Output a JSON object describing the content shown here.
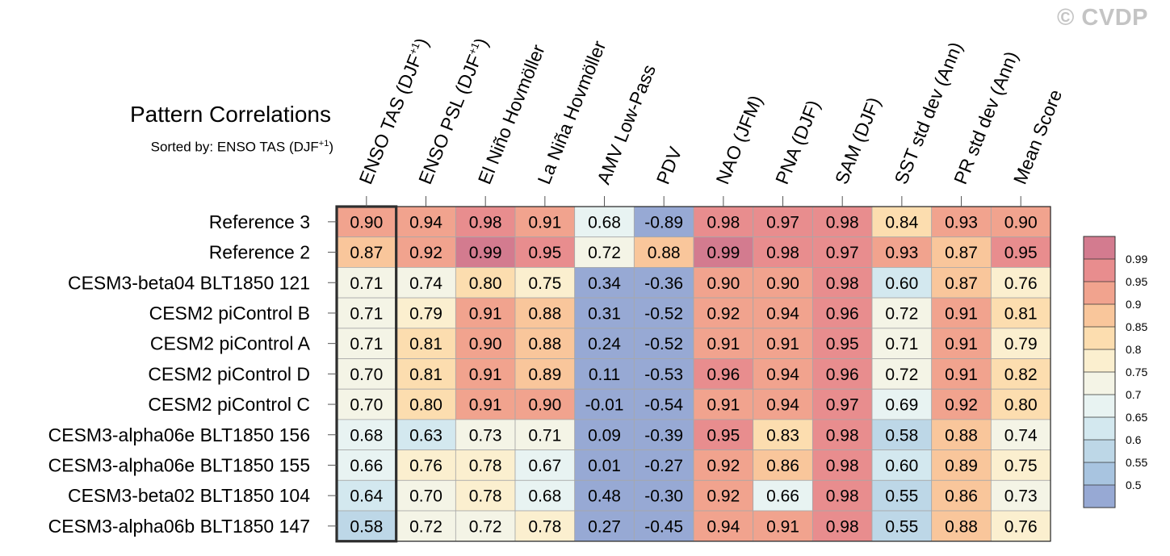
{
  "watermark": "© CVDP",
  "chart_data": {
    "type": "heatmap",
    "title": "Pattern Correlations",
    "subtitle": "Sorted by: ENSO TAS (DJF",
    "subtitle_sup": "+1",
    "subtitle_end": ")",
    "highlight_column": 0,
    "columns": [
      {
        "label": "ENSO TAS (DJF",
        "sup": "+1",
        "end": ")"
      },
      {
        "label": "ENSO PSL (DJF",
        "sup": "+1",
        "end": ")"
      },
      {
        "label": "El Niño Hovmöller",
        "sup": "",
        "end": ""
      },
      {
        "label": "La Niña Hovmöller",
        "sup": "",
        "end": ""
      },
      {
        "label": "AMV Low-Pass",
        "sup": "",
        "end": ""
      },
      {
        "label": "PDV",
        "sup": "",
        "end": ""
      },
      {
        "label": "NAO (JFM)",
        "sup": "",
        "end": ""
      },
      {
        "label": "PNA (DJF)",
        "sup": "",
        "end": ""
      },
      {
        "label": "SAM (DJF)",
        "sup": "",
        "end": ""
      },
      {
        "label": "SST std dev (Ann)",
        "sup": "",
        "end": ""
      },
      {
        "label": "PR std dev (Ann)",
        "sup": "",
        "end": ""
      },
      {
        "label": "Mean Score",
        "sup": "",
        "end": ""
      }
    ],
    "rows": [
      "Reference 3",
      "Reference 2",
      "CESM3-beta04 BLT1850 121",
      "CESM2 piControl B",
      "CESM2 piControl A",
      "CESM2 piControl D",
      "CESM2 piControl C",
      "CESM3-alpha06e BLT1850 156",
      "CESM3-alpha06e BLT1850 155",
      "CESM3-beta02 BLT1850 104",
      "CESM3-alpha06b BLT1850 147"
    ],
    "values": [
      [
        "0.90",
        "0.94",
        "0.98",
        "0.91",
        "0.68",
        "-0.89",
        "0.98",
        "0.97",
        "0.98",
        "0.84",
        "0.93",
        "0.90"
      ],
      [
        "0.87",
        "0.92",
        "0.99",
        "0.95",
        "0.72",
        "0.88",
        "0.99",
        "0.98",
        "0.97",
        "0.93",
        "0.87",
        "0.95"
      ],
      [
        "0.71",
        "0.74",
        "0.80",
        "0.75",
        "0.34",
        "-0.36",
        "0.90",
        "0.90",
        "0.98",
        "0.60",
        "0.87",
        "0.76"
      ],
      [
        "0.71",
        "0.79",
        "0.91",
        "0.88",
        "0.31",
        "-0.52",
        "0.92",
        "0.94",
        "0.96",
        "0.72",
        "0.91",
        "0.81"
      ],
      [
        "0.71",
        "0.81",
        "0.90",
        "0.88",
        "0.24",
        "-0.52",
        "0.91",
        "0.91",
        "0.95",
        "0.71",
        "0.91",
        "0.79"
      ],
      [
        "0.70",
        "0.81",
        "0.91",
        "0.89",
        "0.11",
        "-0.53",
        "0.96",
        "0.94",
        "0.96",
        "0.72",
        "0.91",
        "0.82"
      ],
      [
        "0.70",
        "0.80",
        "0.91",
        "0.90",
        "-0.01",
        "-0.54",
        "0.91",
        "0.94",
        "0.97",
        "0.69",
        "0.92",
        "0.80"
      ],
      [
        "0.68",
        "0.63",
        "0.73",
        "0.71",
        "0.09",
        "-0.39",
        "0.95",
        "0.83",
        "0.98",
        "0.58",
        "0.88",
        "0.74"
      ],
      [
        "0.66",
        "0.76",
        "0.78",
        "0.67",
        "0.01",
        "-0.27",
        "0.92",
        "0.86",
        "0.98",
        "0.60",
        "0.89",
        "0.75"
      ],
      [
        "0.64",
        "0.70",
        "0.78",
        "0.68",
        "0.48",
        "-0.30",
        "0.92",
        "0.66",
        "0.98",
        "0.55",
        "0.86",
        "0.73"
      ],
      [
        "0.58",
        "0.72",
        "0.72",
        "0.78",
        "0.27",
        "-0.45",
        "0.94",
        "0.91",
        "0.98",
        "0.55",
        "0.88",
        "0.76"
      ]
    ],
    "colorbar": {
      "levels": [
        "0.99",
        "0.95",
        "0.9",
        "0.85",
        "0.8",
        "0.75",
        "0.7",
        "0.65",
        "0.6",
        "0.55",
        "0.5"
      ],
      "thresholds": [
        0.5,
        0.55,
        0.6,
        0.65,
        0.7,
        0.75,
        0.8,
        0.85,
        0.9,
        0.95,
        0.99
      ],
      "colors": [
        "#97a9d4",
        "#a8c4e0",
        "#bdd7e7",
        "#d3e8ef",
        "#e8f3f2",
        "#f4f4e6",
        "#fbefcf",
        "#fcddaf",
        "#f9c69b",
        "#f1a38e",
        "#e88d8e",
        "#d37b8f"
      ]
    }
  }
}
